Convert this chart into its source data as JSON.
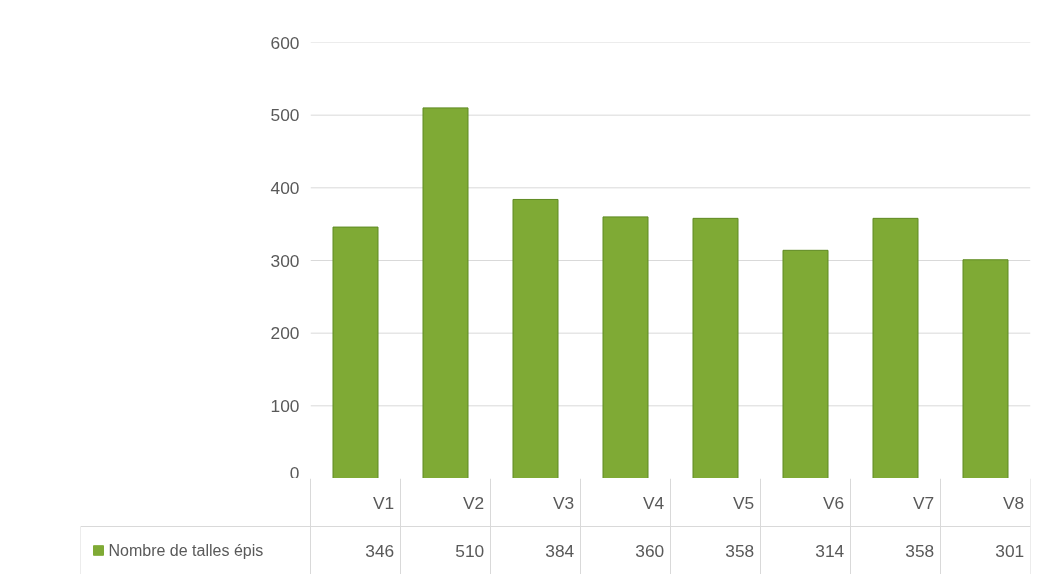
{
  "chart_data": {
    "type": "bar",
    "categories": [
      "V1",
      "V2",
      "V3",
      "V4",
      "V5",
      "V6",
      "V7",
      "V8"
    ],
    "series": [
      {
        "name": "Nombre de talles épis",
        "color": "#7faa35",
        "values": [
          346,
          510,
          384,
          360,
          358,
          314,
          358,
          301
        ]
      }
    ],
    "ylim": [
      0,
      600
    ],
    "yticks": [
      0,
      100,
      200,
      300,
      400,
      500,
      600
    ],
    "grid": "y",
    "data_labels": true
  }
}
